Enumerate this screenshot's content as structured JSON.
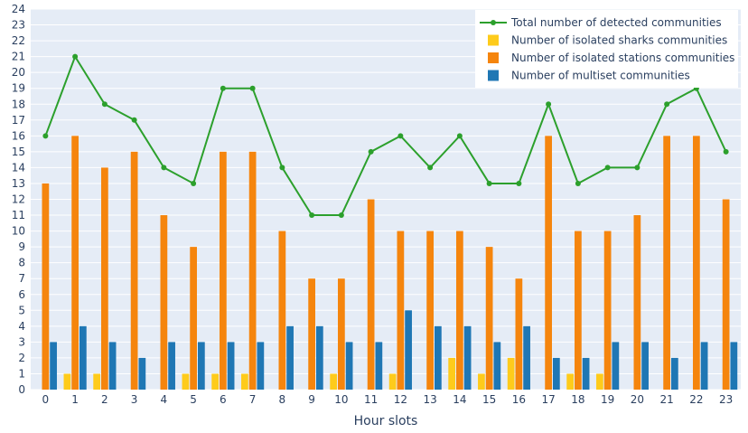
{
  "chart_data": {
    "type": "bar",
    "title": "",
    "xlabel": "Hour slots",
    "ylabel": "",
    "categories": [
      "0",
      "1",
      "2",
      "3",
      "4",
      "5",
      "6",
      "7",
      "8",
      "9",
      "10",
      "11",
      "12",
      "13",
      "14",
      "15",
      "16",
      "17",
      "18",
      "19",
      "20",
      "21",
      "22",
      "23"
    ],
    "ylim": [
      0,
      24
    ],
    "yticks": [
      0,
      1,
      2,
      3,
      4,
      5,
      6,
      7,
      8,
      9,
      10,
      11,
      12,
      13,
      14,
      15,
      16,
      17,
      18,
      19,
      20,
      21,
      22,
      23,
      24
    ],
    "grid": true,
    "legend_position": "top-right",
    "series": [
      {
        "name": "Total number of detected communities",
        "kind": "line",
        "color": "#2ca02c",
        "values": [
          16,
          21,
          18,
          17,
          14,
          13,
          19,
          19,
          14,
          11,
          11,
          15,
          16,
          14,
          16,
          13,
          13,
          18,
          13,
          14,
          14,
          18,
          19,
          15
        ]
      },
      {
        "name": "Number of isolated sharks communities",
        "kind": "bar",
        "color": "#fecb1b",
        "values": [
          0,
          1,
          1,
          0,
          0,
          1,
          1,
          1,
          0,
          0,
          1,
          0,
          1,
          0,
          2,
          1,
          2,
          0,
          1,
          1,
          0,
          0,
          0,
          0
        ]
      },
      {
        "name": "Number of isolated stations communities",
        "kind": "bar",
        "color": "#f5850d",
        "values": [
          13,
          16,
          14,
          15,
          11,
          9,
          15,
          15,
          10,
          7,
          7,
          12,
          10,
          10,
          10,
          9,
          7,
          16,
          10,
          10,
          11,
          16,
          16,
          12
        ]
      },
      {
        "name": "Number of multiset communities",
        "kind": "bar",
        "color": "#1f77b4",
        "values": [
          3,
          4,
          3,
          2,
          3,
          3,
          3,
          3,
          4,
          4,
          3,
          3,
          5,
          4,
          4,
          3,
          4,
          2,
          2,
          3,
          3,
          2,
          3,
          3
        ]
      }
    ]
  }
}
